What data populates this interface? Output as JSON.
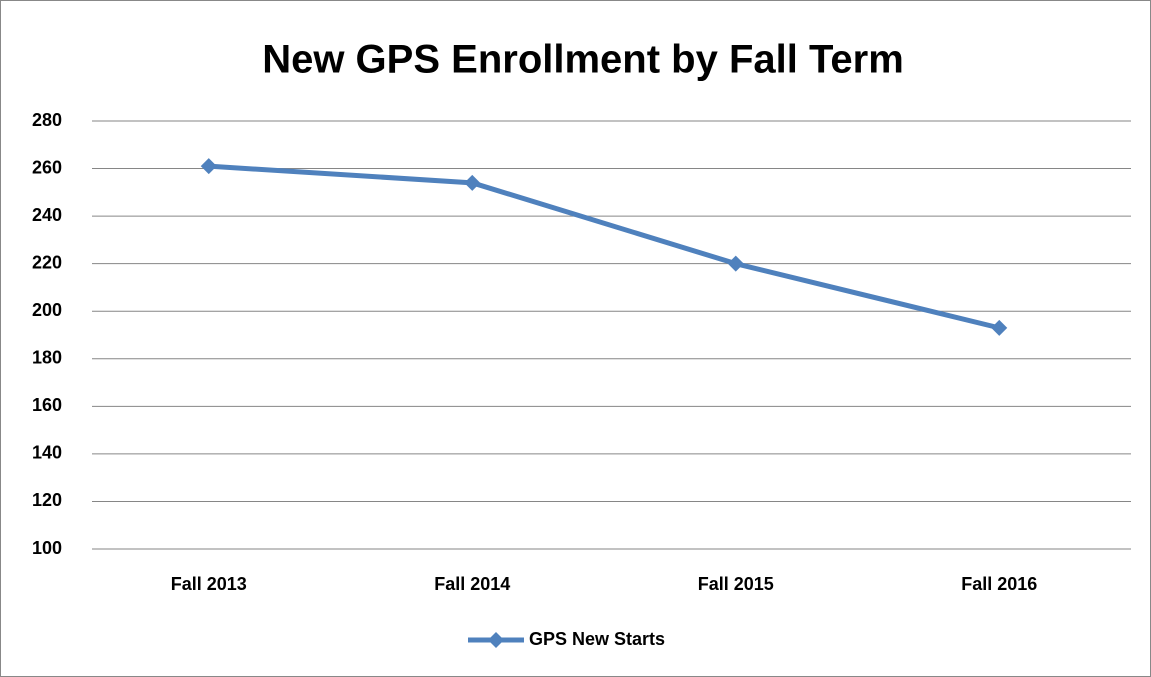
{
  "chart_data": {
    "type": "line",
    "title": "New GPS Enrollment by Fall Term",
    "categories": [
      "Fall 2013",
      "Fall 2014",
      "Fall 2015",
      "Fall 2016"
    ],
    "series": [
      {
        "name": "GPS New Starts",
        "color": "#4f81bd",
        "values": [
          261,
          254,
          220,
          193
        ]
      }
    ],
    "ylim": [
      100,
      280
    ],
    "yticks": [
      100,
      120,
      140,
      160,
      180,
      200,
      220,
      240,
      260,
      280
    ],
    "grid": true,
    "legend": "bottom"
  }
}
